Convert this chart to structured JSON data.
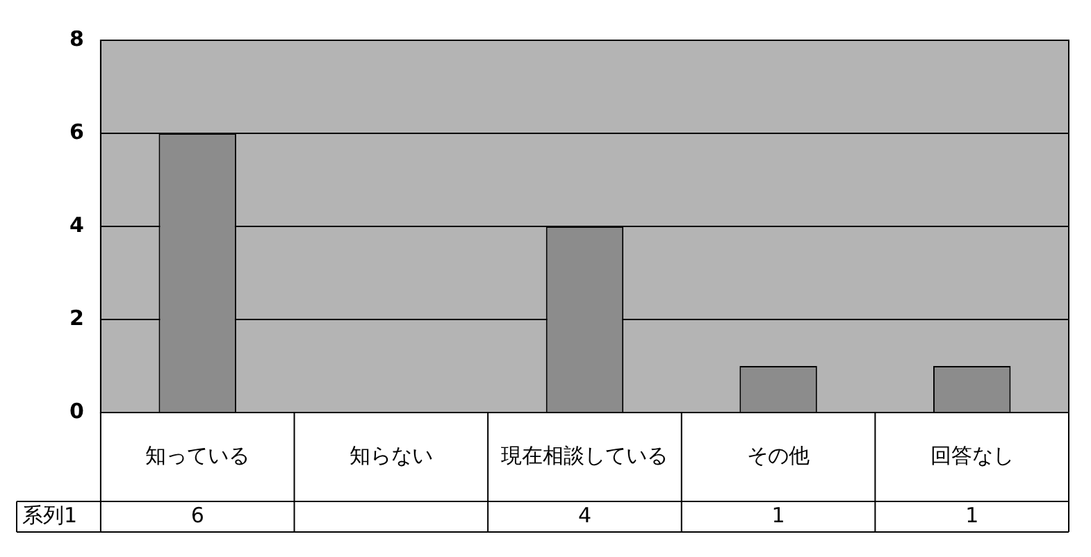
{
  "chart_data": {
    "type": "bar",
    "categories": [
      "知っている",
      "知らない",
      "現在相談している",
      "その他",
      "回答なし"
    ],
    "series": [
      {
        "name": "系列1",
        "color": "#8c8c8c",
        "values": [
          6,
          null,
          4,
          1,
          1
        ]
      }
    ],
    "ylim": [
      0,
      8
    ],
    "yticks": [
      0,
      2,
      4,
      6,
      8
    ],
    "grid": "y",
    "legend": false,
    "data_labels": true
  }
}
